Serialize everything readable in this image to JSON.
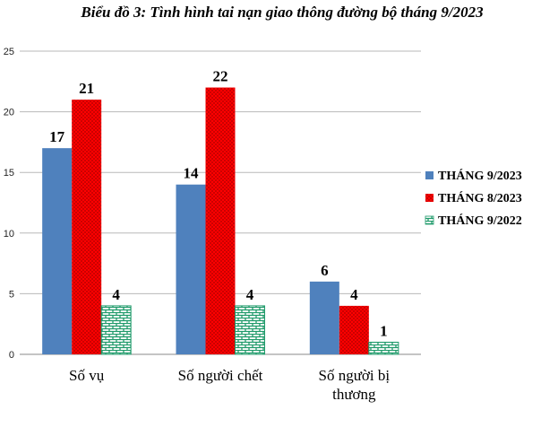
{
  "chart_data": {
    "type": "bar",
    "title": "Biểu đồ 3: Tình hình tai nạn giao thông đường bộ tháng 9/2023",
    "categories": [
      [
        "Số vụ"
      ],
      [
        "Số người chết"
      ],
      [
        "Số người bị",
        "thương"
      ]
    ],
    "series": [
      {
        "name": "THÁNG 9/2023",
        "values": [
          17,
          14,
          6
        ],
        "color": "#4f81bd",
        "pattern": "solid"
      },
      {
        "name": "THÁNG 8/2023",
        "values": [
          21,
          22,
          4
        ],
        "color": "#ff0000",
        "pattern": "dots"
      },
      {
        "name": "THÁNG 9/2022",
        "values": [
          4,
          4,
          1
        ],
        "color": "#1f9a6a",
        "pattern": "bricks"
      }
    ],
    "ylim": [
      0,
      25
    ],
    "yticks": [
      0,
      5,
      10,
      15,
      20,
      25
    ],
    "xlabel": "",
    "ylabel": "",
    "grid": true,
    "legend": "right"
  }
}
